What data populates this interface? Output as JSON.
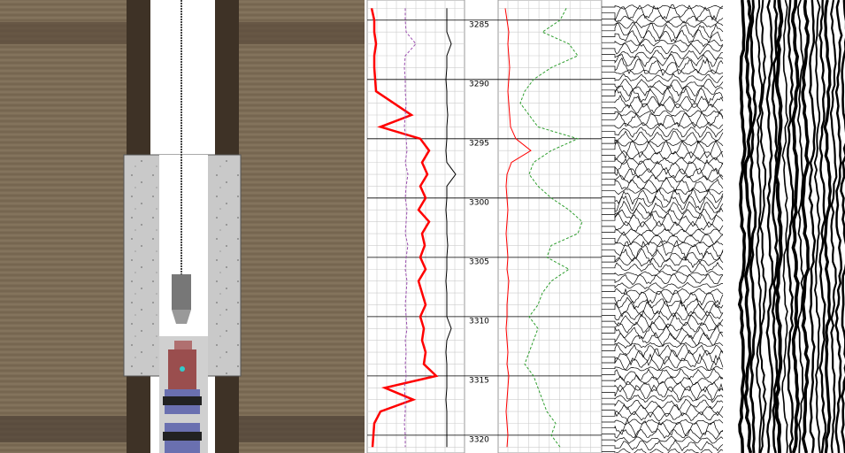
{
  "chart_data": {
    "type": "well-log",
    "ylim": [
      3283.3,
      3321.5
    ],
    "yticks": [
      3285,
      3290,
      3295,
      3300,
      3305,
      3310,
      3315,
      3320
    ],
    "depth": [
      3284,
      3285,
      3286,
      3287,
      3288,
      3289,
      3290,
      3291,
      3292,
      3293,
      3294,
      3295,
      3296,
      3297,
      3298,
      3299,
      3300,
      3301,
      3302,
      3303,
      3304,
      3305,
      3306,
      3307,
      3308,
      3309,
      3310,
      3311,
      3312,
      3313,
      3314,
      3315,
      3316,
      3317,
      3318,
      3319,
      3320,
      3321
    ],
    "grid": true,
    "tracks": [
      {
        "xlim": [
          0,
          110
        ],
        "series": [
          {
            "color": "#ff0000",
            "width": 2.5,
            "dash": false,
            "values": [
              5,
              8,
              8,
              10,
              8,
              8,
              9,
              10,
              30,
              50,
              15,
              60,
              70,
              62,
              68,
              60,
              66,
              58,
              70,
              62,
              65,
              60,
              66,
              58,
              62,
              66,
              60,
              64,
              62,
              66,
              64,
              78,
              20,
              52,
              15,
              8,
              7,
              6
            ]
          },
          {
            "color": "#9b4fb0",
            "width": 1,
            "dash": true,
            "values": [
              43,
              43,
              44,
              55,
              43,
              42,
              43,
              43,
              44,
              43,
              42,
              44,
              45,
              43,
              46,
              44,
              43,
              45,
              44,
              43,
              46,
              44,
              43,
              45,
              44,
              43,
              44,
              45,
              43,
              44,
              43,
              44,
              42,
              43,
              43,
              42,
              43,
              43
            ]
          },
          {
            "color": "#000000",
            "width": 1,
            "dash": false,
            "values": [
              90,
              90,
              90,
              95,
              90,
              90,
              89,
              90,
              90,
              91,
              90,
              90,
              89,
              90,
              100,
              90,
              90,
              89,
              90,
              90,
              91,
              90,
              90,
              89,
              90,
              90,
              90,
              95,
              90,
              89,
              90,
              90,
              90,
              89,
              90,
              90,
              90,
              90
            ]
          }
        ]
      },
      {
        "xlim": [
          0,
          117
        ],
        "series": [
          {
            "color": "#ff0000",
            "width": 1,
            "dash": false,
            "values": [
              8,
              10,
              12,
              11,
              12,
              13,
              12,
              11,
              12,
              13,
              14,
              20,
              37,
              15,
              10,
              9,
              10,
              11,
              10,
              9,
              10,
              11,
              10,
              12,
              11,
              10,
              10,
              9,
              10,
              11,
              10,
              12,
              11,
              10,
              9,
              10,
              11,
              10
            ]
          },
          {
            "color": "#2e9e2e",
            "width": 1,
            "dash": true,
            "values": [
              77,
              70,
              50,
              80,
              90,
              60,
              40,
              30,
              25,
              35,
              45,
              90,
              60,
              40,
              35,
              45,
              60,
              80,
              95,
              90,
              60,
              55,
              80,
              60,
              50,
              45,
              35,
              45,
              40,
              35,
              30,
              40,
              45,
              50,
              55,
              65,
              60,
              70
            ]
          }
        ]
      }
    ]
  }
}
